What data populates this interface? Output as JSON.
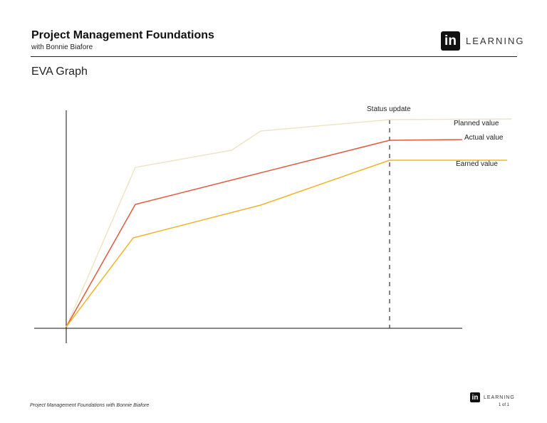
{
  "header": {
    "title": "Project Management Foundations",
    "subtitle": "with Bonnie Biafore",
    "logo_in": "in",
    "logo_text": "LEARNING"
  },
  "heading": "EVA Graph",
  "graph": {
    "status_label": "Status update",
    "series": [
      {
        "name": "Planned value",
        "color": "#efe4c6"
      },
      {
        "name": "Actual value",
        "color": "#e25a3c"
      },
      {
        "name": "Earned value",
        "color": "#f0b429"
      }
    ]
  },
  "footer": {
    "course": "Project Management Foundations with Bonnie Biafore",
    "logo_in": "in",
    "logo_text": "LEARNING",
    "page": "1 of 1"
  }
}
